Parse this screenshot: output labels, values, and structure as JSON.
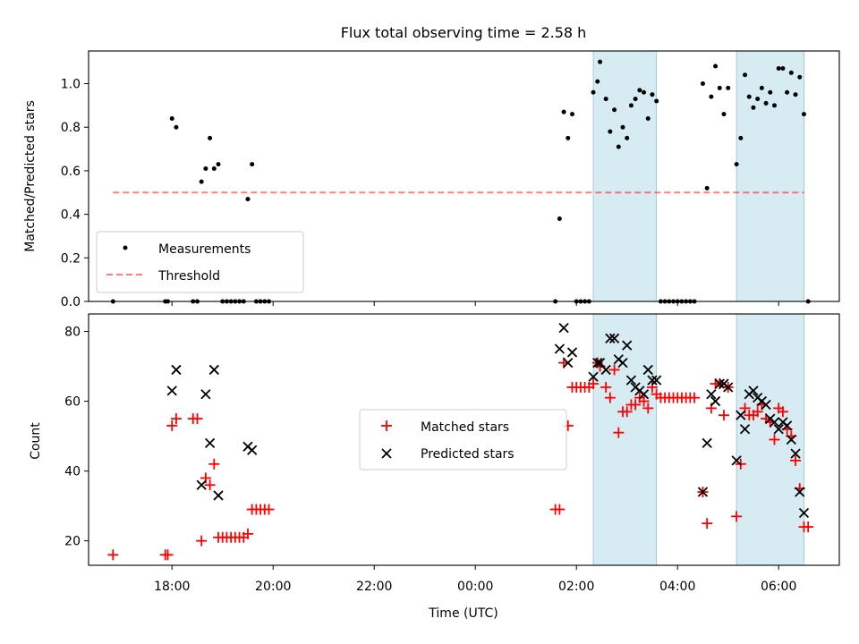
{
  "chart_data": [
    {
      "type": "scatter",
      "title": "Flux total observing time = 2.58 h",
      "xlabel": "",
      "ylabel": "Matched/Predicted stars",
      "ylim": [
        0,
        1.15
      ],
      "xlim_hours": [
        16.35,
        31.2
      ],
      "y_ticks": [
        0.0,
        0.2,
        0.4,
        0.6,
        0.8,
        1.0
      ],
      "y_tick_labels": [
        "0.0",
        "0.2",
        "0.4",
        "0.6",
        "0.8",
        "1.0"
      ],
      "shaded_intervals": [
        [
          "02:20",
          "03:35"
        ],
        [
          "05:10",
          "06:30"
        ]
      ],
      "threshold": {
        "value": 0.5,
        "x_range": [
          "16:50",
          "06:30"
        ]
      },
      "legend": {
        "placement": "lower-left",
        "entries": [
          "Measurements",
          "Threshold"
        ]
      },
      "series": [
        {
          "name": "Measurements",
          "color": "#000000",
          "points": [
            [
              "16:50",
              0.0
            ],
            [
              "17:52",
              0.0
            ],
            [
              "17:55",
              0.0
            ],
            [
              "18:00",
              0.84
            ],
            [
              "18:05",
              0.8
            ],
            [
              "18:25",
              0.0
            ],
            [
              "18:30",
              0.0
            ],
            [
              "18:35",
              0.55
            ],
            [
              "18:40",
              0.61
            ],
            [
              "18:45",
              0.75
            ],
            [
              "18:50",
              0.61
            ],
            [
              "18:55",
              0.63
            ],
            [
              "19:00",
              0.0
            ],
            [
              "19:05",
              0.0
            ],
            [
              "19:10",
              0.0
            ],
            [
              "19:15",
              0.0
            ],
            [
              "19:20",
              0.0
            ],
            [
              "19:25",
              0.0
            ],
            [
              "19:30",
              0.47
            ],
            [
              "19:35",
              0.63
            ],
            [
              "19:40",
              0.0
            ],
            [
              "19:45",
              0.0
            ],
            [
              "19:50",
              0.0
            ],
            [
              "19:55",
              0.0
            ],
            [
              "01:35",
              0.0
            ],
            [
              "01:40",
              0.38
            ],
            [
              "01:45",
              0.87
            ],
            [
              "01:50",
              0.75
            ],
            [
              "01:55",
              0.86
            ],
            [
              "02:00",
              0.0
            ],
            [
              "02:05",
              0.0
            ],
            [
              "02:10",
              0.0
            ],
            [
              "02:15",
              0.0
            ],
            [
              "02:20",
              0.96
            ],
            [
              "02:25",
              1.01
            ],
            [
              "02:28",
              1.1
            ],
            [
              "02:35",
              0.93
            ],
            [
              "02:40",
              0.78
            ],
            [
              "02:45",
              0.88
            ],
            [
              "02:50",
              0.71
            ],
            [
              "02:55",
              0.8
            ],
            [
              "03:00",
              0.75
            ],
            [
              "03:05",
              0.9
            ],
            [
              "03:10",
              0.93
            ],
            [
              "03:15",
              0.97
            ],
            [
              "03:20",
              0.96
            ],
            [
              "03:25",
              0.84
            ],
            [
              "03:30",
              0.95
            ],
            [
              "03:35",
              0.92
            ],
            [
              "03:40",
              0.0
            ],
            [
              "03:45",
              0.0
            ],
            [
              "03:50",
              0.0
            ],
            [
              "03:55",
              0.0
            ],
            [
              "04:00",
              0.0
            ],
            [
              "04:05",
              0.0
            ],
            [
              "04:10",
              0.0
            ],
            [
              "04:15",
              0.0
            ],
            [
              "04:20",
              0.0
            ],
            [
              "04:30",
              1.0
            ],
            [
              "04:35",
              0.52
            ],
            [
              "04:40",
              0.94
            ],
            [
              "04:45",
              1.08
            ],
            [
              "04:50",
              0.98
            ],
            [
              "04:55",
              0.86
            ],
            [
              "05:00",
              0.98
            ],
            [
              "05:10",
              0.63
            ],
            [
              "05:15",
              0.75
            ],
            [
              "05:20",
              1.04
            ],
            [
              "05:25",
              0.94
            ],
            [
              "05:30",
              0.89
            ],
            [
              "05:35",
              0.93
            ],
            [
              "05:40",
              0.98
            ],
            [
              "05:45",
              0.91
            ],
            [
              "05:50",
              0.96
            ],
            [
              "05:55",
              0.9
            ],
            [
              "06:00",
              1.07
            ],
            [
              "06:05",
              1.07
            ],
            [
              "06:10",
              0.96
            ],
            [
              "06:15",
              1.05
            ],
            [
              "06:20",
              0.95
            ],
            [
              "06:25",
              1.03
            ],
            [
              "06:30",
              0.86
            ],
            [
              "06:35",
              0.0
            ]
          ]
        }
      ]
    },
    {
      "type": "scatter",
      "title": "",
      "xlabel": "Time (UTC)",
      "ylabel": "Count",
      "ylim": [
        13,
        85
      ],
      "xlim_hours": [
        16.35,
        31.2
      ],
      "x_ticks": [
        "18:00",
        "20:00",
        "22:00",
        "00:00",
        "02:00",
        "04:00",
        "06:00"
      ],
      "y_ticks": [
        20,
        40,
        60,
        80
      ],
      "y_tick_labels": [
        "20",
        "40",
        "60",
        "80"
      ],
      "shaded_intervals": [
        [
          "02:20",
          "03:35"
        ],
        [
          "05:10",
          "06:30"
        ]
      ],
      "legend": {
        "placement": "center",
        "entries": [
          "Matched stars",
          "Predicted stars"
        ]
      },
      "series": [
        {
          "name": "Matched stars",
          "color": "#ff0000",
          "marker": "plus",
          "points": [
            [
              "16:50",
              16
            ],
            [
              "17:52",
              16
            ],
            [
              "17:55",
              16
            ],
            [
              "18:00",
              53
            ],
            [
              "18:05",
              55
            ],
            [
              "18:25",
              55
            ],
            [
              "18:30",
              55
            ],
            [
              "18:35",
              20
            ],
            [
              "18:40",
              38
            ],
            [
              "18:45",
              36
            ],
            [
              "18:50",
              42
            ],
            [
              "18:55",
              21
            ],
            [
              "19:00",
              21
            ],
            [
              "19:05",
              21
            ],
            [
              "19:10",
              21
            ],
            [
              "19:15",
              21
            ],
            [
              "19:20",
              21
            ],
            [
              "19:25",
              21
            ],
            [
              "19:30",
              22
            ],
            [
              "19:35",
              29
            ],
            [
              "19:40",
              29
            ],
            [
              "19:45",
              29
            ],
            [
              "19:50",
              29
            ],
            [
              "19:55",
              29
            ],
            [
              "01:35",
              29
            ],
            [
              "01:40",
              29
            ],
            [
              "01:45",
              71
            ],
            [
              "01:50",
              53
            ],
            [
              "01:55",
              64
            ],
            [
              "02:00",
              64
            ],
            [
              "02:05",
              64
            ],
            [
              "02:10",
              64
            ],
            [
              "02:15",
              64
            ],
            [
              "02:20",
              65
            ],
            [
              "02:25",
              71
            ],
            [
              "02:28",
              70
            ],
            [
              "02:35",
              64
            ],
            [
              "02:40",
              61
            ],
            [
              "02:45",
              69
            ],
            [
              "02:50",
              51
            ],
            [
              "02:55",
              57
            ],
            [
              "03:00",
              57
            ],
            [
              "03:05",
              59
            ],
            [
              "03:10",
              59
            ],
            [
              "03:15",
              61
            ],
            [
              "03:20",
              60
            ],
            [
              "03:25",
              58
            ],
            [
              "03:30",
              64
            ],
            [
              "03:35",
              62
            ],
            [
              "03:40",
              61
            ],
            [
              "03:45",
              61
            ],
            [
              "03:50",
              61
            ],
            [
              "03:55",
              61
            ],
            [
              "04:00",
              61
            ],
            [
              "04:05",
              61
            ],
            [
              "04:10",
              61
            ],
            [
              "04:15",
              61
            ],
            [
              "04:20",
              61
            ],
            [
              "04:30",
              34
            ],
            [
              "04:35",
              25
            ],
            [
              "04:40",
              58
            ],
            [
              "04:45",
              65
            ],
            [
              "04:50",
              65
            ],
            [
              "04:55",
              56
            ],
            [
              "05:00",
              64
            ],
            [
              "05:10",
              27
            ],
            [
              "05:15",
              42
            ],
            [
              "05:20",
              58
            ],
            [
              "05:25",
              56
            ],
            [
              "05:30",
              56
            ],
            [
              "05:35",
              57
            ],
            [
              "05:40",
              59
            ],
            [
              "05:45",
              55
            ],
            [
              "05:50",
              54
            ],
            [
              "05:55",
              49
            ],
            [
              "06:00",
              58
            ],
            [
              "06:05",
              57
            ],
            [
              "06:10",
              52
            ],
            [
              "06:15",
              50
            ],
            [
              "06:20",
              43
            ],
            [
              "06:25",
              35
            ],
            [
              "06:30",
              24
            ],
            [
              "06:35",
              24
            ]
          ]
        },
        {
          "name": "Predicted stars",
          "color": "#000000",
          "marker": "x",
          "points": [
            [
              "18:00",
              63
            ],
            [
              "18:05",
              69
            ],
            [
              "18:35",
              36
            ],
            [
              "18:40",
              62
            ],
            [
              "18:45",
              48
            ],
            [
              "18:50",
              69
            ],
            [
              "18:55",
              33
            ],
            [
              "19:30",
              47
            ],
            [
              "19:35",
              46
            ],
            [
              "01:40",
              75
            ],
            [
              "01:45",
              81
            ],
            [
              "01:50",
              71
            ],
            [
              "01:55",
              74
            ],
            [
              "02:20",
              67
            ],
            [
              "02:25",
              71
            ],
            [
              "02:28",
              71
            ],
            [
              "02:35",
              69
            ],
            [
              "02:40",
              78
            ],
            [
              "02:45",
              78
            ],
            [
              "02:50",
              72
            ],
            [
              "02:55",
              71
            ],
            [
              "03:00",
              76
            ],
            [
              "03:05",
              66
            ],
            [
              "03:10",
              64
            ],
            [
              "03:15",
              63
            ],
            [
              "03:20",
              62
            ],
            [
              "03:25",
              69
            ],
            [
              "03:30",
              66
            ],
            [
              "03:35",
              66
            ],
            [
              "04:30",
              34
            ],
            [
              "04:35",
              48
            ],
            [
              "04:40",
              62
            ],
            [
              "04:45",
              60
            ],
            [
              "04:50",
              65
            ],
            [
              "04:55",
              65
            ],
            [
              "05:00",
              64
            ],
            [
              "05:10",
              43
            ],
            [
              "05:15",
              56
            ],
            [
              "05:20",
              52
            ],
            [
              "05:25",
              62
            ],
            [
              "05:30",
              63
            ],
            [
              "05:35",
              61
            ],
            [
              "05:40",
              60
            ],
            [
              "05:45",
              59
            ],
            [
              "05:50",
              55
            ],
            [
              "05:55",
              54
            ],
            [
              "06:00",
              52
            ],
            [
              "06:05",
              54
            ],
            [
              "06:10",
              53
            ],
            [
              "06:15",
              49
            ],
            [
              "06:20",
              45
            ],
            [
              "06:25",
              34
            ],
            [
              "06:30",
              28
            ]
          ]
        }
      ]
    }
  ]
}
